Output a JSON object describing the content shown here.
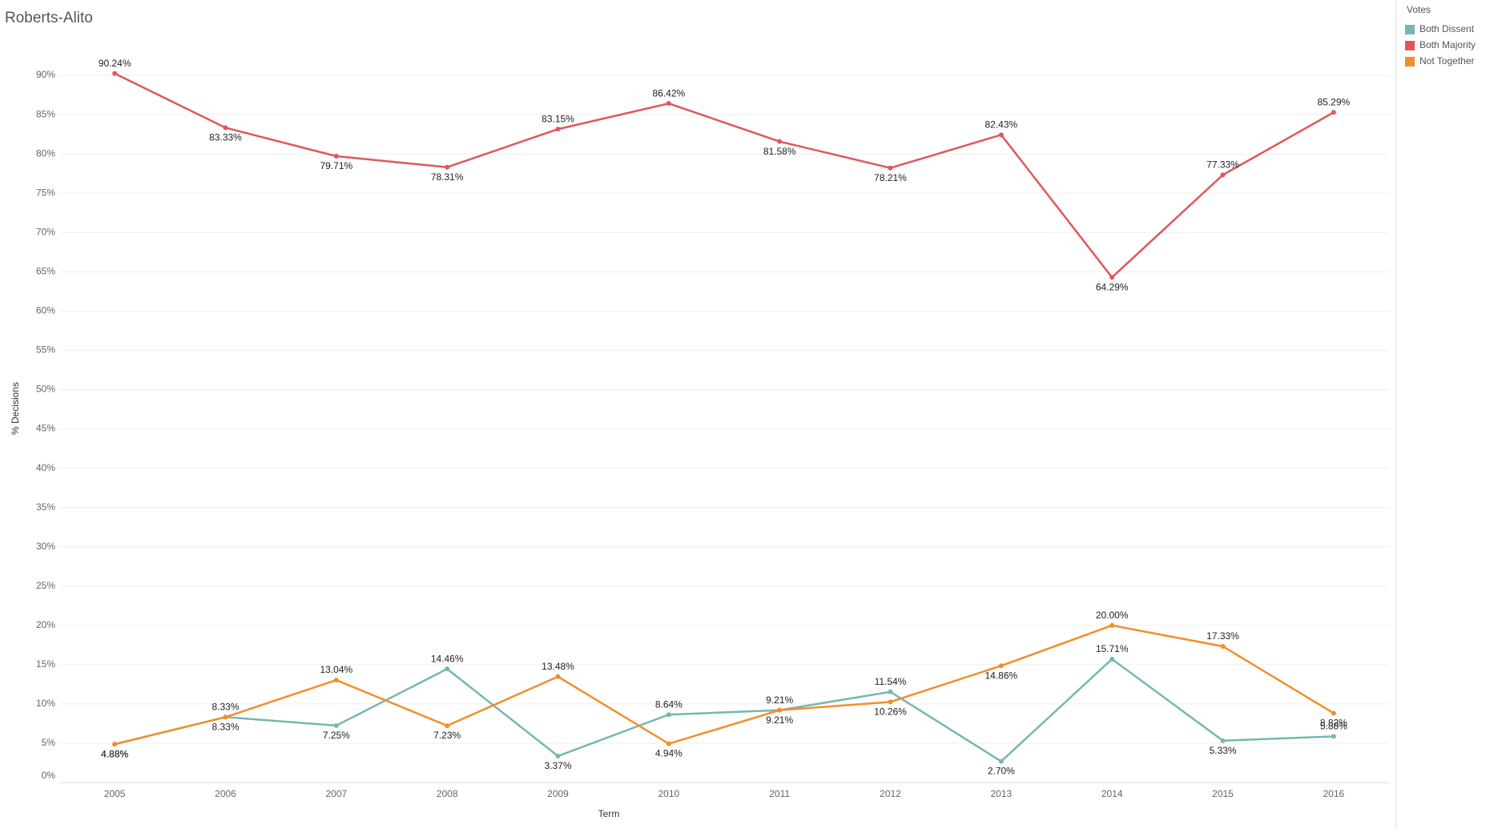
{
  "chart_data": {
    "type": "line",
    "title": "Roberts-Alito",
    "x_label": "Term",
    "y_label": "% Decisions",
    "categories": [
      "2005",
      "2006",
      "2007",
      "2008",
      "2009",
      "2010",
      "2011",
      "2012",
      "2013",
      "2014",
      "2015",
      "2016"
    ],
    "series": [
      {
        "name": "Both Dissent",
        "color": "#76b7b2",
        "values": [
          4.88,
          8.33,
          7.25,
          14.46,
          3.37,
          8.64,
          9.21,
          11.54,
          2.7,
          15.71,
          5.33,
          5.88
        ],
        "value_labels": [
          "4.88%",
          "8.33%",
          "7.25%",
          "14.46%",
          "3.37%",
          "8.64%",
          "9.21%",
          "11.54%",
          "2.70%",
          "15.71%",
          "5.33%",
          "5.88%"
        ]
      },
      {
        "name": "Both Majority",
        "color": "#e15759",
        "values": [
          90.24,
          83.33,
          79.71,
          78.31,
          83.15,
          86.42,
          81.58,
          78.21,
          82.43,
          64.29,
          77.33,
          85.29
        ],
        "value_labels": [
          "90.24%",
          "83.33%",
          "79.71%",
          "78.31%",
          "83.15%",
          "86.42%",
          "81.58%",
          "78.21%",
          "82.43%",
          "64.29%",
          "77.33%",
          "85.29%"
        ]
      },
      {
        "name": "Not Together",
        "color": "#f28e2b",
        "values": [
          4.88,
          8.33,
          13.04,
          7.23,
          13.48,
          4.94,
          9.21,
          10.26,
          14.86,
          20.0,
          17.33,
          8.82
        ],
        "value_labels": [
          "4.88%",
          "8.33%",
          "13.04%",
          "7.23%",
          "13.48%",
          "4.94%",
          "9.21%",
          "10.26%",
          "14.86%",
          "20.00%",
          "17.33%",
          "8.82%"
        ]
      }
    ],
    "legend_title": "Votes",
    "legend_position": "right",
    "ylim": [
      0,
      95
    ],
    "yticks": [
      {
        "value": 0,
        "label": "0%"
      },
      {
        "value": 5,
        "label": "5%"
      },
      {
        "value": 10,
        "label": "10%"
      },
      {
        "value": 15,
        "label": "15%"
      },
      {
        "value": 20,
        "label": "20%"
      },
      {
        "value": 25,
        "label": "25%"
      },
      {
        "value": 30,
        "label": "30%"
      },
      {
        "value": 35,
        "label": "35%"
      },
      {
        "value": 40,
        "label": "40%"
      },
      {
        "value": 45,
        "label": "45%"
      },
      {
        "value": 50,
        "label": "50%"
      },
      {
        "value": 55,
        "label": "55%"
      },
      {
        "value": 60,
        "label": "60%"
      },
      {
        "value": 65,
        "label": "65%"
      },
      {
        "value": 70,
        "label": "70%"
      },
      {
        "value": 75,
        "label": "75%"
      },
      {
        "value": 80,
        "label": "80%"
      },
      {
        "value": 85,
        "label": "85%"
      },
      {
        "value": 90,
        "label": "90%"
      }
    ],
    "grid": true
  }
}
